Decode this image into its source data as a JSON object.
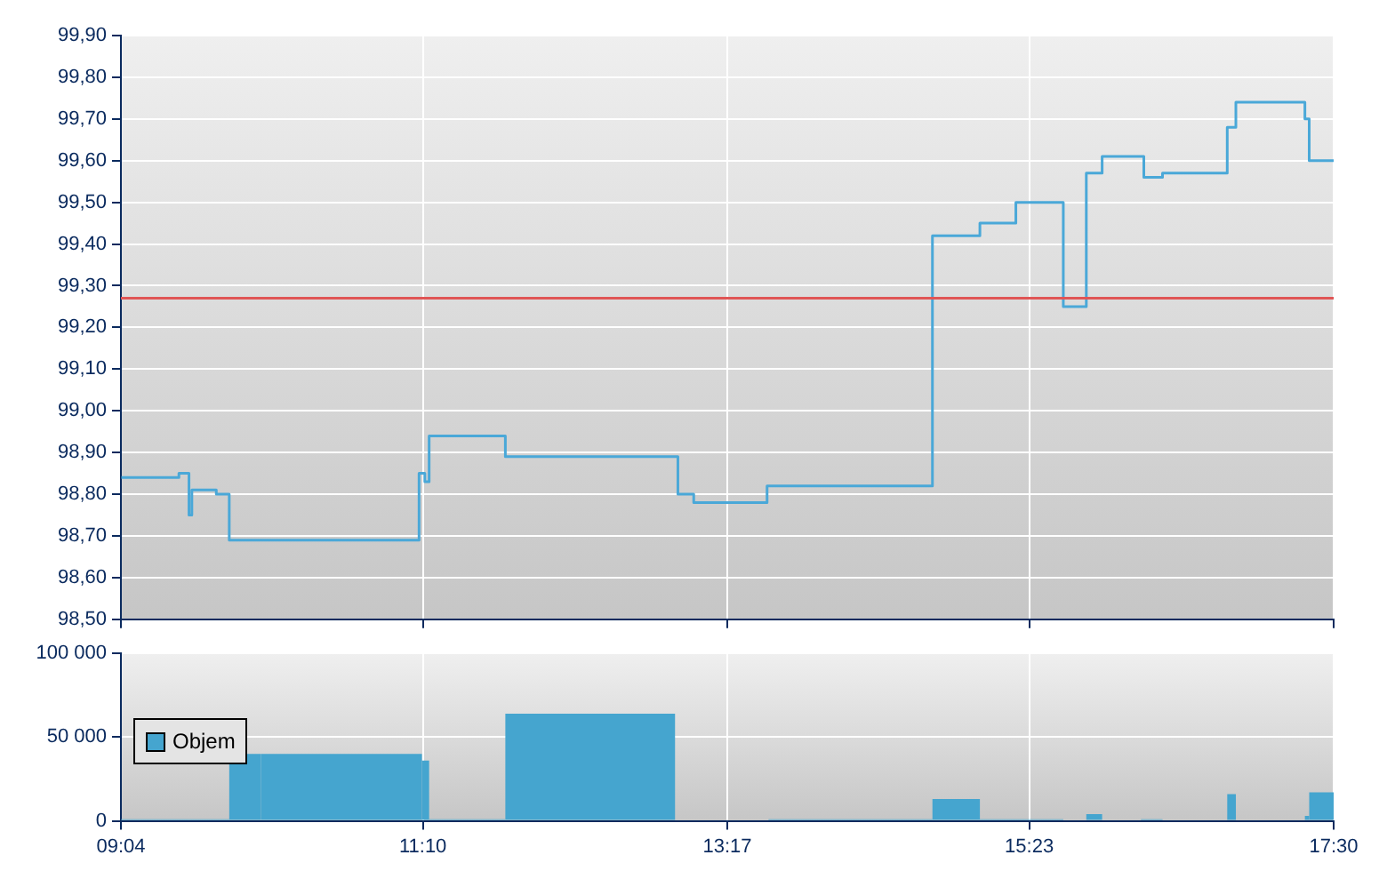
{
  "chart_data": [
    {
      "type": "step",
      "x": [
        9.07,
        9.47,
        9.54,
        9.56,
        9.73,
        9.82,
        11.14,
        11.18,
        11.21,
        11.74,
        12.94,
        13.05,
        13.56,
        14.71,
        15.04,
        15.29,
        15.62,
        15.78,
        15.89,
        16.18,
        16.31,
        16.76,
        16.82,
        17.3,
        17.33,
        17.5
      ],
      "values": [
        98.84,
        98.85,
        98.75,
        98.81,
        98.8,
        98.69,
        98.85,
        98.83,
        98.94,
        98.89,
        98.8,
        98.78,
        98.82,
        99.42,
        99.45,
        99.5,
        99.25,
        99.57,
        99.61,
        99.56,
        99.57,
        99.68,
        99.74,
        99.7,
        99.6,
        99.6
      ],
      "color": "#4aa8d8",
      "xlim": [
        9.0667,
        17.5
      ],
      "xticks": [
        {
          "value": 9.0667,
          "label": null
        },
        {
          "value": 11.1667,
          "label": null
        },
        {
          "value": 13.2833,
          "label": null
        },
        {
          "value": 15.3833,
          "label": null
        },
        {
          "value": 17.5,
          "label": null
        }
      ],
      "ylim": [
        98.5,
        99.9
      ],
      "yticks": [
        {
          "value": 98.5,
          "label": "98,50"
        },
        {
          "value": 98.6,
          "label": "98,60"
        },
        {
          "value": 98.7,
          "label": "98,70"
        },
        {
          "value": 98.8,
          "label": "98,80"
        },
        {
          "value": 98.9,
          "label": "98,90"
        },
        {
          "value": 99.0,
          "label": "99,00"
        },
        {
          "value": 99.1,
          "label": "99,10"
        },
        {
          "value": 99.2,
          "label": "99,20"
        },
        {
          "value": 99.3,
          "label": "99,30"
        },
        {
          "value": 99.4,
          "label": "99,40"
        },
        {
          "value": 99.5,
          "label": "99,50"
        },
        {
          "value": 99.6,
          "label": "99,60"
        },
        {
          "value": 99.7,
          "label": "99,70"
        },
        {
          "value": 99.8,
          "label": "99,80"
        },
        {
          "value": 99.9,
          "label": "99,90"
        }
      ],
      "ref_lines": [
        {
          "axis": "y",
          "value": 99.27,
          "color": "#e05555"
        }
      ],
      "grid": true,
      "tick_labels": "y"
    },
    {
      "type": "histogram",
      "bins": [
        9.0667,
        9.54,
        9.82,
        10.04,
        11.16,
        11.21,
        11.74,
        12.92,
        13.57,
        14.71,
        15.04,
        15.62,
        15.78,
        15.89,
        16.16,
        16.31,
        16.76,
        16.82,
        17.3,
        17.33,
        17.5
      ],
      "series": [
        {
          "name": "Objem",
          "color": "#45a5cf",
          "values": [
            1000,
            1000,
            40000,
            40000,
            36000,
            1000,
            64000,
            0,
            1000,
            13000,
            1000,
            0,
            4000,
            0,
            1000,
            0,
            16000,
            0,
            3000,
            17000
          ]
        }
      ],
      "xlim": [
        9.0667,
        17.5
      ],
      "xticks": [
        {
          "value": 9.0667,
          "label": "09:04"
        },
        {
          "value": 11.1667,
          "label": "11:10"
        },
        {
          "value": 13.2833,
          "label": "13:17"
        },
        {
          "value": 15.3833,
          "label": "15:23"
        },
        {
          "value": 17.5,
          "label": "17:30"
        }
      ],
      "ylim": [
        0,
        100000
      ],
      "yticks": [
        0,
        {
          "value": 50000,
          "label": "50 000"
        },
        {
          "value": 100000,
          "label": "100 000"
        }
      ],
      "grid": true,
      "legend": "left"
    }
  ]
}
